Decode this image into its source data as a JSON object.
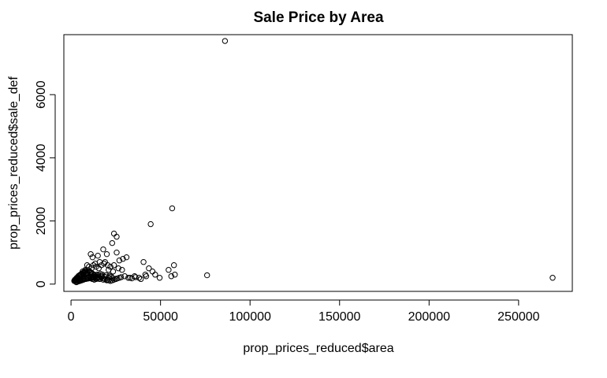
{
  "chart_data": {
    "type": "scatter",
    "title": "Sale Price by Area",
    "xlabel": "prop_prices_reduced$area",
    "ylabel": "prop_prices_reduced$sale_def",
    "xlim": [
      -4000,
      280000
    ],
    "ylim": [
      -230,
      7900
    ],
    "xticks": [
      0,
      50000,
      100000,
      150000,
      200000,
      250000
    ],
    "xtick_labels": [
      "0",
      "50000",
      "100000",
      "150000",
      "200000",
      "250000"
    ],
    "yticks": [
      0,
      2000,
      4000,
      6000
    ],
    "ytick_labels": [
      "0",
      "2000",
      "4000",
      "6000"
    ],
    "grid": false,
    "legend": "none",
    "marker": "open-circle",
    "colors": {
      "points": "#000000",
      "background": "#ffffff"
    },
    "x": [
      86000,
      269000,
      56500,
      44500,
      24000,
      25500,
      23000,
      25500,
      20000,
      18000,
      15000,
      11000,
      12000,
      27000,
      29000,
      31000,
      40500,
      43500,
      45500,
      47000,
      54500,
      57500,
      58000,
      56000,
      76000,
      49500,
      38000,
      35500,
      41500,
      42000,
      30000,
      33000,
      20500,
      22000,
      19000,
      24000,
      26500,
      28500,
      16000,
      13500,
      12500,
      14000,
      15500,
      17000,
      18500,
      21000,
      23500,
      9000,
      10000,
      11500,
      8000,
      7000,
      6500,
      5500,
      4500,
      3500,
      3000,
      2500,
      2000,
      1800,
      2200,
      2800,
      3200,
      3800,
      4200,
      4800,
      5200,
      5800,
      6200,
      6800,
      7200,
      7800,
      8200,
      8800,
      9200,
      9800,
      10200,
      10800,
      11200,
      11800,
      12200,
      12800,
      13200,
      13800,
      14500,
      15200,
      16500,
      17500,
      19500,
      21500,
      22500,
      2500,
      3500,
      4500,
      5500,
      6500,
      7500,
      8500,
      9500,
      10500,
      11500,
      12500,
      13500,
      14500,
      3000,
      4000,
      5000,
      6000,
      7000,
      8000,
      9000,
      10000,
      11000,
      12000,
      13000,
      14000,
      15000,
      16000,
      17000,
      18000,
      19000,
      20000,
      21000,
      22000,
      23000,
      24000,
      25000,
      26000,
      27000,
      28000,
      4000,
      6000,
      8000,
      10000,
      12000,
      14000,
      16000,
      18000,
      20000,
      5000,
      7000,
      9000,
      11000,
      13000,
      15000,
      17000,
      19000,
      21000,
      23000,
      25000,
      32000,
      34000,
      36000,
      39000
    ],
    "y": [
      7700,
      200,
      2400,
      1900,
      1600,
      1500,
      1300,
      1000,
      950,
      1100,
      900,
      950,
      850,
      750,
      800,
      850,
      700,
      500,
      400,
      300,
      450,
      600,
      300,
      250,
      280,
      200,
      200,
      250,
      300,
      250,
      250,
      200,
      600,
      550,
      700,
      600,
      500,
      450,
      700,
      650,
      600,
      550,
      500,
      600,
      650,
      450,
      400,
      600,
      550,
      500,
      450,
      350,
      400,
      300,
      250,
      200,
      180,
      150,
      120,
      100,
      140,
      160,
      200,
      220,
      260,
      280,
      300,
      320,
      340,
      360,
      380,
      400,
      420,
      380,
      360,
      400,
      420,
      380,
      360,
      340,
      320,
      300,
      280,
      260,
      300,
      280,
      320,
      300,
      280,
      260,
      240,
      80,
      100,
      120,
      140,
      160,
      180,
      200,
      220,
      240,
      200,
      220,
      240,
      200,
      60,
      80,
      100,
      120,
      140,
      160,
      180,
      200,
      180,
      160,
      140,
      160,
      180,
      200,
      220,
      180,
      160,
      140,
      120,
      100,
      120,
      140,
      160,
      180,
      200,
      220,
      120,
      140,
      160,
      180,
      200,
      180,
      160,
      140,
      120,
      130,
      150,
      170,
      190,
      210,
      230,
      250,
      230,
      210,
      190,
      170,
      200,
      180,
      220,
      160
    ]
  }
}
